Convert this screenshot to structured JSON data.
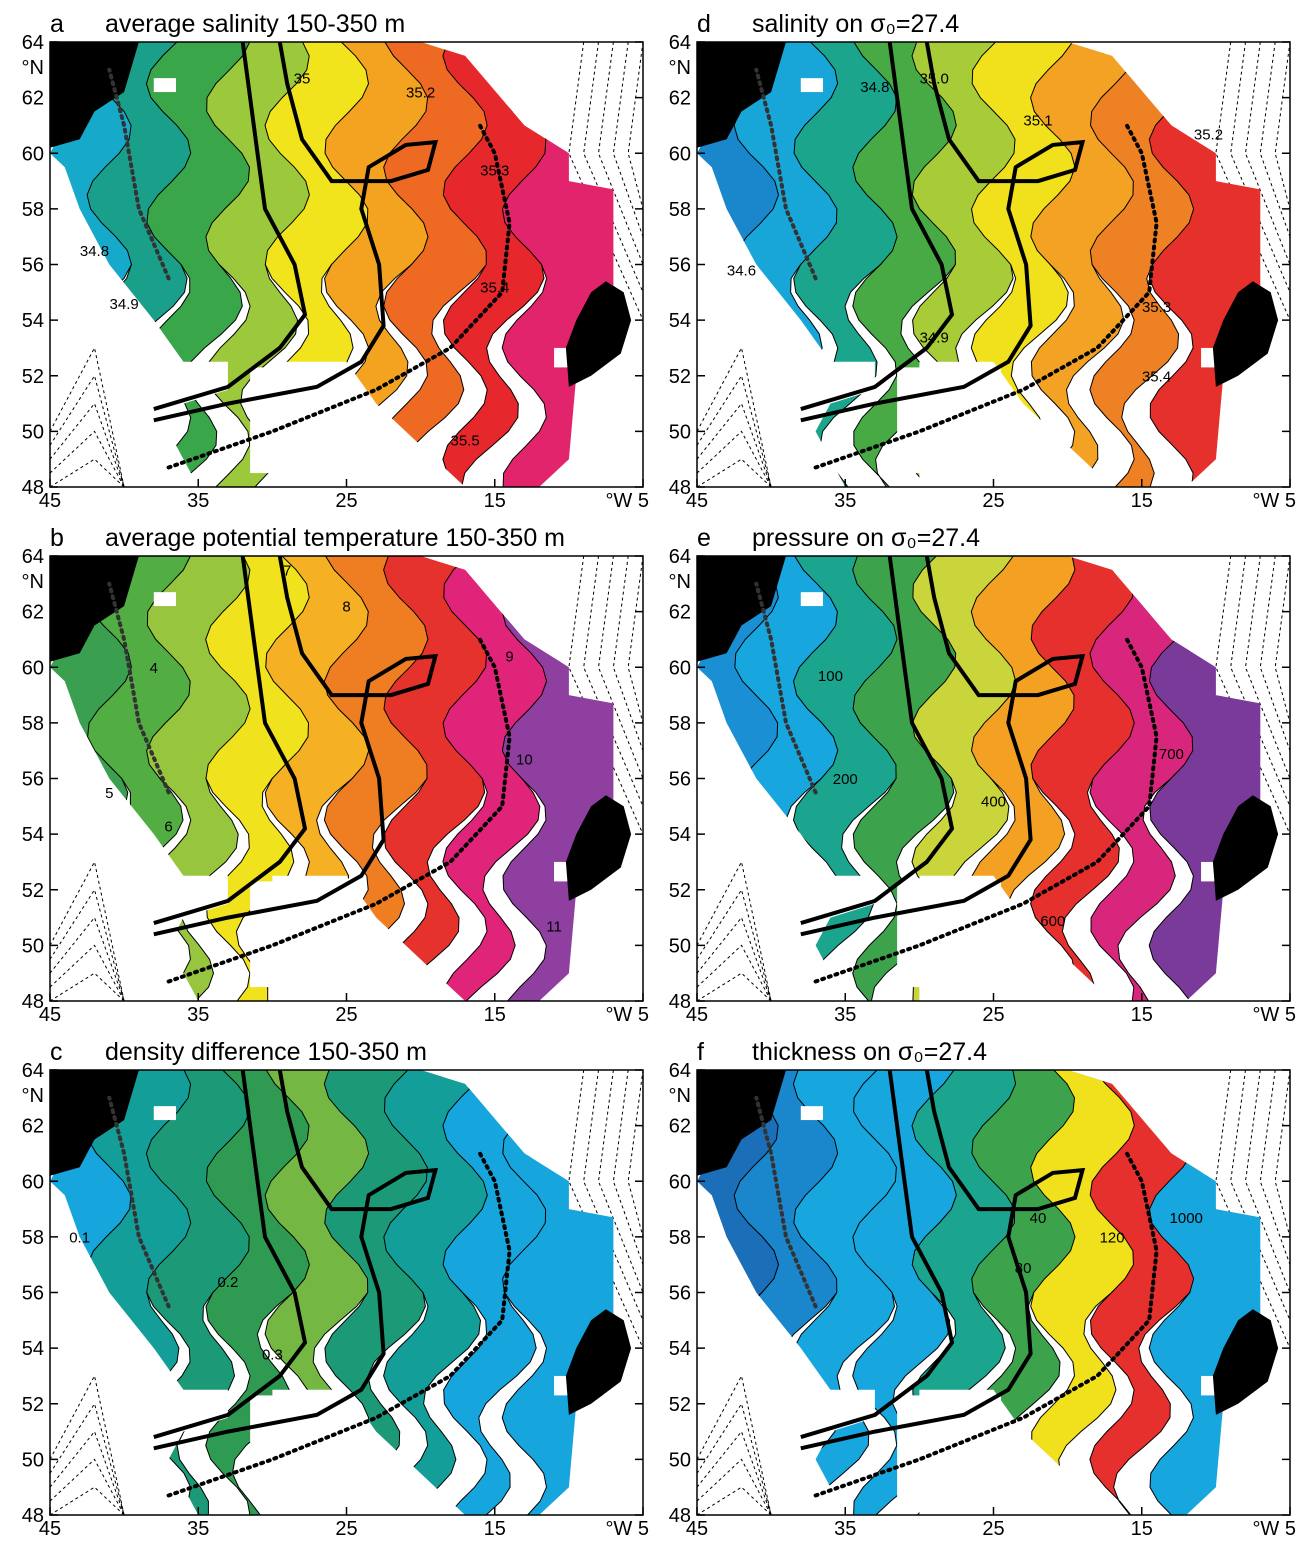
{
  "axes": {
    "xlim": [
      45,
      5
    ],
    "ylim": [
      48,
      64
    ],
    "xticks": [
      45,
      35,
      25,
      15,
      {
        "value": 5,
        "label": "°W 5"
      }
    ],
    "yticks": [
      48,
      50,
      52,
      54,
      56,
      58,
      60,
      62,
      64
    ],
    "ylabel": "°N"
  },
  "panels": [
    {
      "letter": "a",
      "title": "average salinity 150-350 m",
      "labels": [
        "35",
        "35.2",
        "35.3",
        "34.8",
        "34.9",
        "35.4",
        "35.5"
      ]
    },
    {
      "letter": "b",
      "title": "average potential temperature 150-350 m",
      "labels": [
        "7",
        "8",
        "9",
        "4",
        "5",
        "6",
        "10",
        "11"
      ]
    },
    {
      "letter": "c",
      "title": "density difference 150-350 m",
      "labels": [
        "0.1",
        "0.2",
        "0.3"
      ]
    },
    {
      "letter": "d",
      "title": "salinity on σ₀=27.4",
      "labels": [
        "35.0",
        "34.8",
        "35.1",
        "35.2",
        "34.6",
        "35.3",
        "34.9",
        "35.4"
      ]
    },
    {
      "letter": "e",
      "title": "pressure on σ₀=27.4",
      "labels": [
        "100",
        "200",
        "400",
        "600",
        "700"
      ]
    },
    {
      "letter": "f",
      "title": "thickness on σ₀=27.4",
      "labels": [
        "40",
        "80",
        "120",
        "1000"
      ]
    }
  ]
}
